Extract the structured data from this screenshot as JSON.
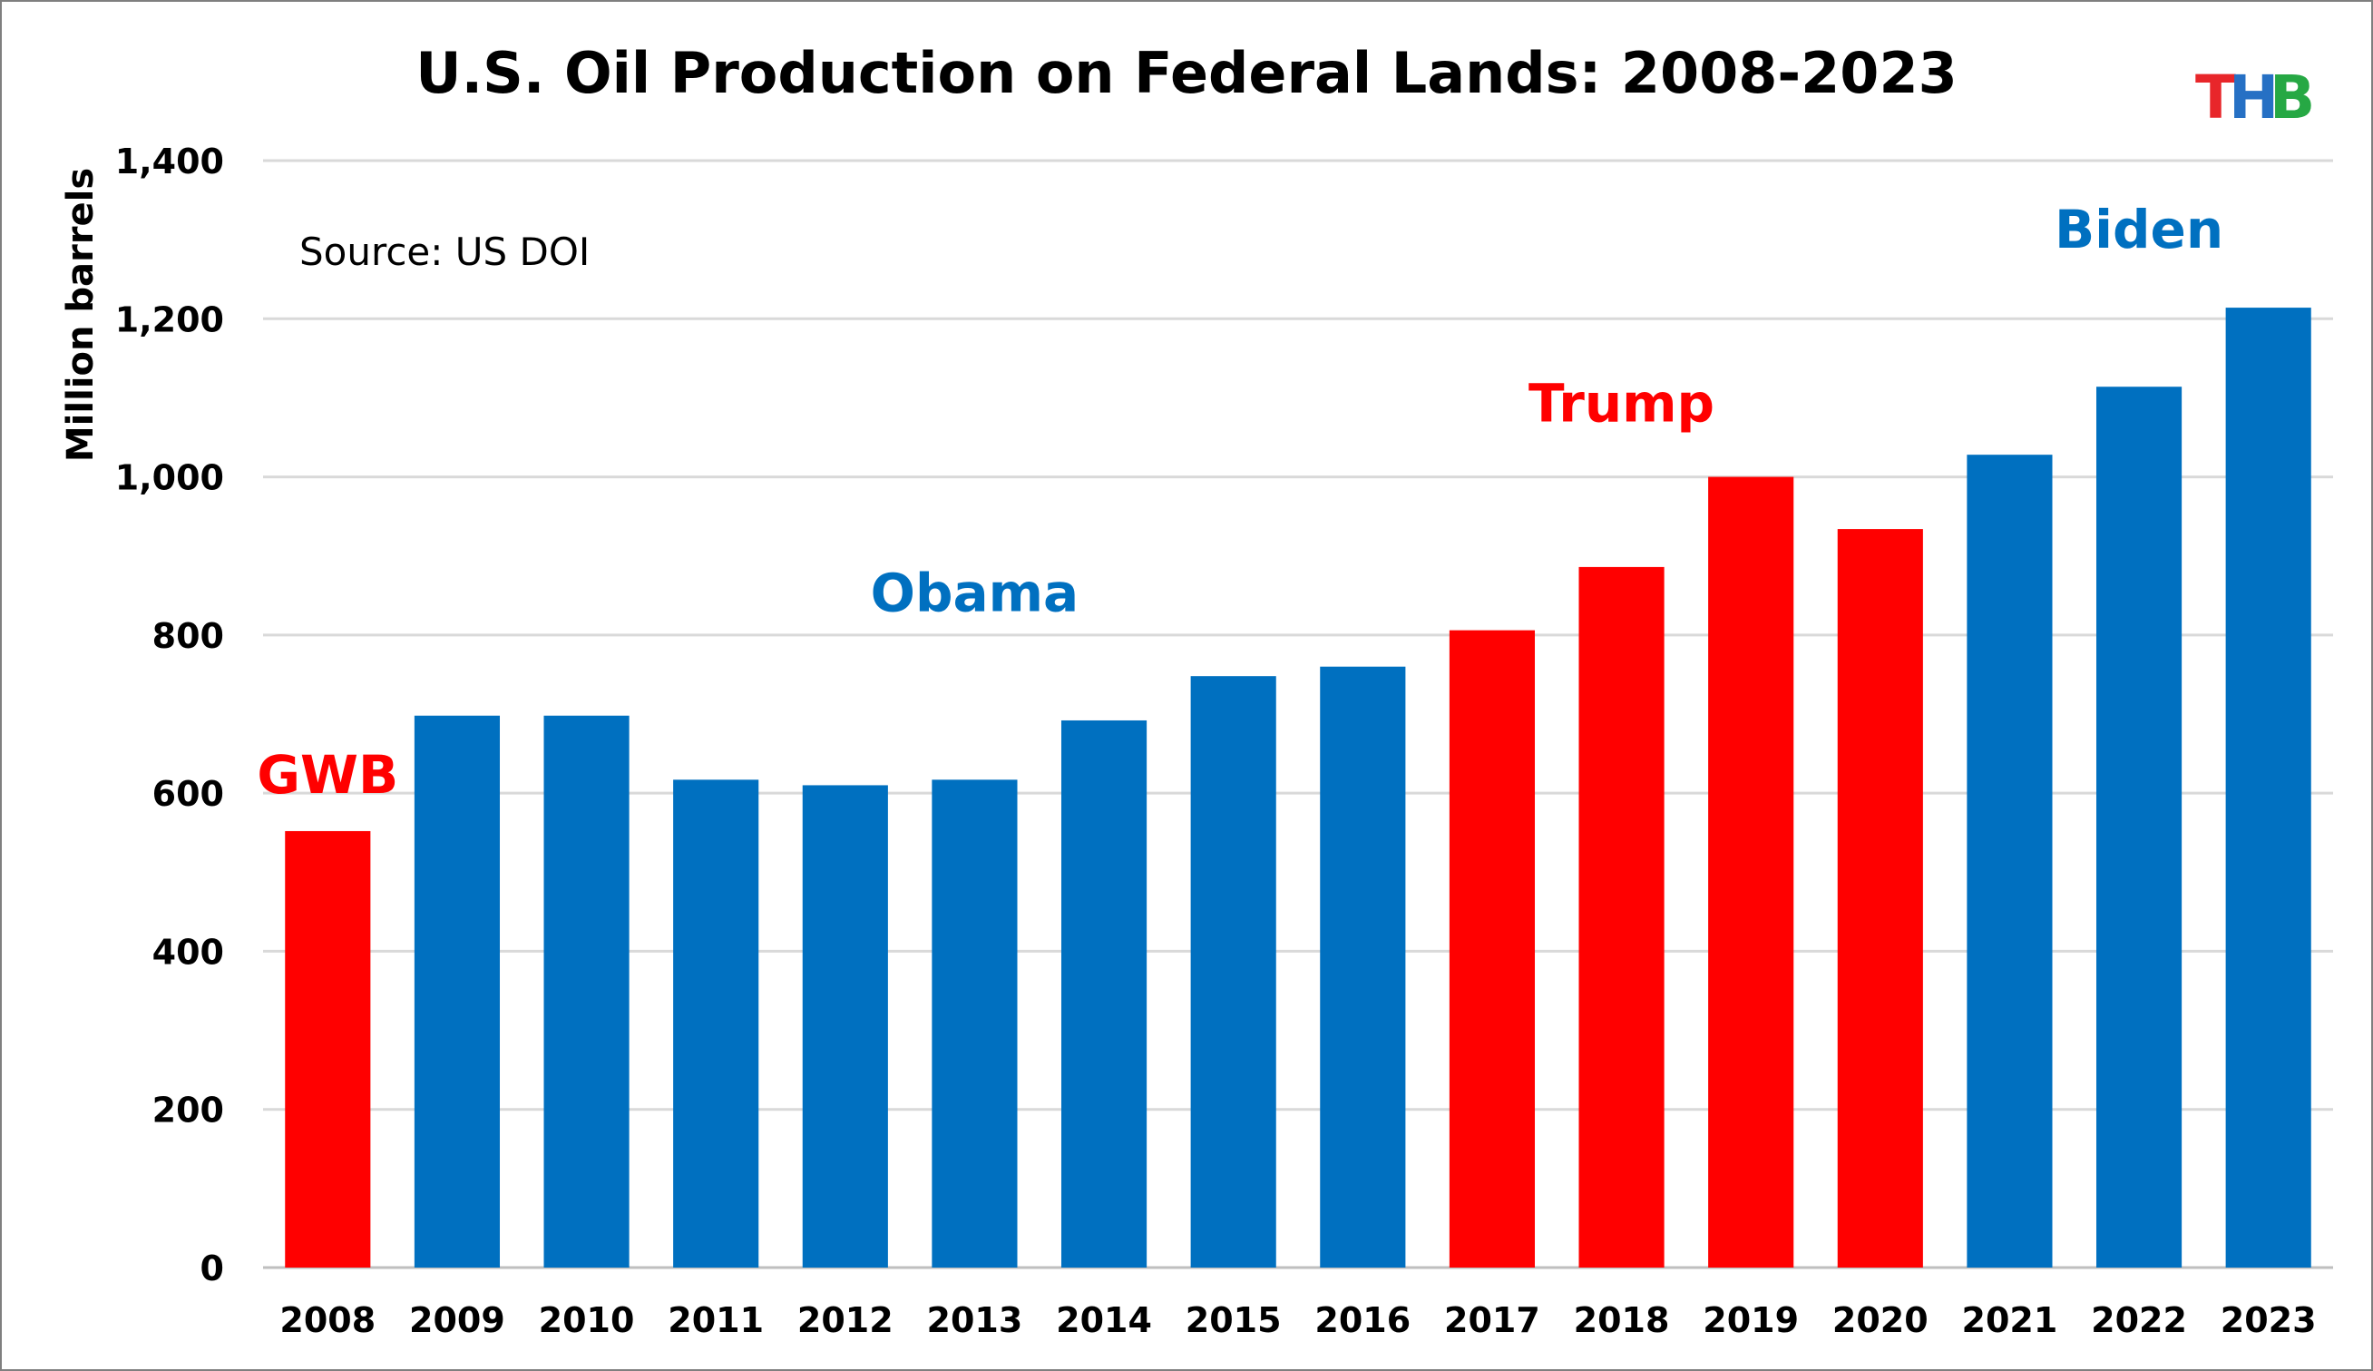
{
  "chart_data": {
    "type": "bar",
    "title": "U.S. Oil Production on Federal Lands: 2008-2023",
    "ylabel": "Million barrels",
    "xlabel": "",
    "ylim": [
      0,
      1400
    ],
    "yticks": [
      0,
      200,
      400,
      600,
      800,
      1000,
      1200,
      1400
    ],
    "ytick_labels": [
      "0",
      "200",
      "400",
      "600",
      "800",
      "1,000",
      "1,200",
      "1,400"
    ],
    "grid": true,
    "source_note": "Source: US DOI",
    "categories": [
      "2008",
      "2009",
      "2010",
      "2011",
      "2012",
      "2013",
      "2014",
      "2015",
      "2016",
      "2017",
      "2018",
      "2019",
      "2020",
      "2021",
      "2022",
      "2023"
    ],
    "values": [
      552,
      698,
      698,
      617,
      610,
      617,
      692,
      748,
      760,
      806,
      886,
      1000,
      934,
      1028,
      1114,
      1214
    ],
    "party": [
      "R",
      "D",
      "D",
      "D",
      "D",
      "D",
      "D",
      "D",
      "D",
      "R",
      "R",
      "R",
      "R",
      "D",
      "D",
      "D"
    ],
    "colors": {
      "R": "#ff0000",
      "D": "#0070c0"
    },
    "annotations": [
      {
        "text": "GWB",
        "color": "#ff0000",
        "year": "2008",
        "value": 600
      },
      {
        "text": "Obama",
        "color": "#0070c0",
        "year": "2013",
        "value": 830
      },
      {
        "text": "Trump",
        "color": "#ff0000",
        "year": "2018",
        "value": 1070
      },
      {
        "text": "Biden",
        "color": "#0070c0",
        "year": "2022",
        "value": 1290
      }
    ]
  },
  "logo": {
    "letters": [
      {
        "char": "T",
        "color": "#e8262a"
      },
      {
        "char": "H",
        "color": "#2670c4"
      },
      {
        "char": "B",
        "color": "#26a844"
      }
    ]
  }
}
